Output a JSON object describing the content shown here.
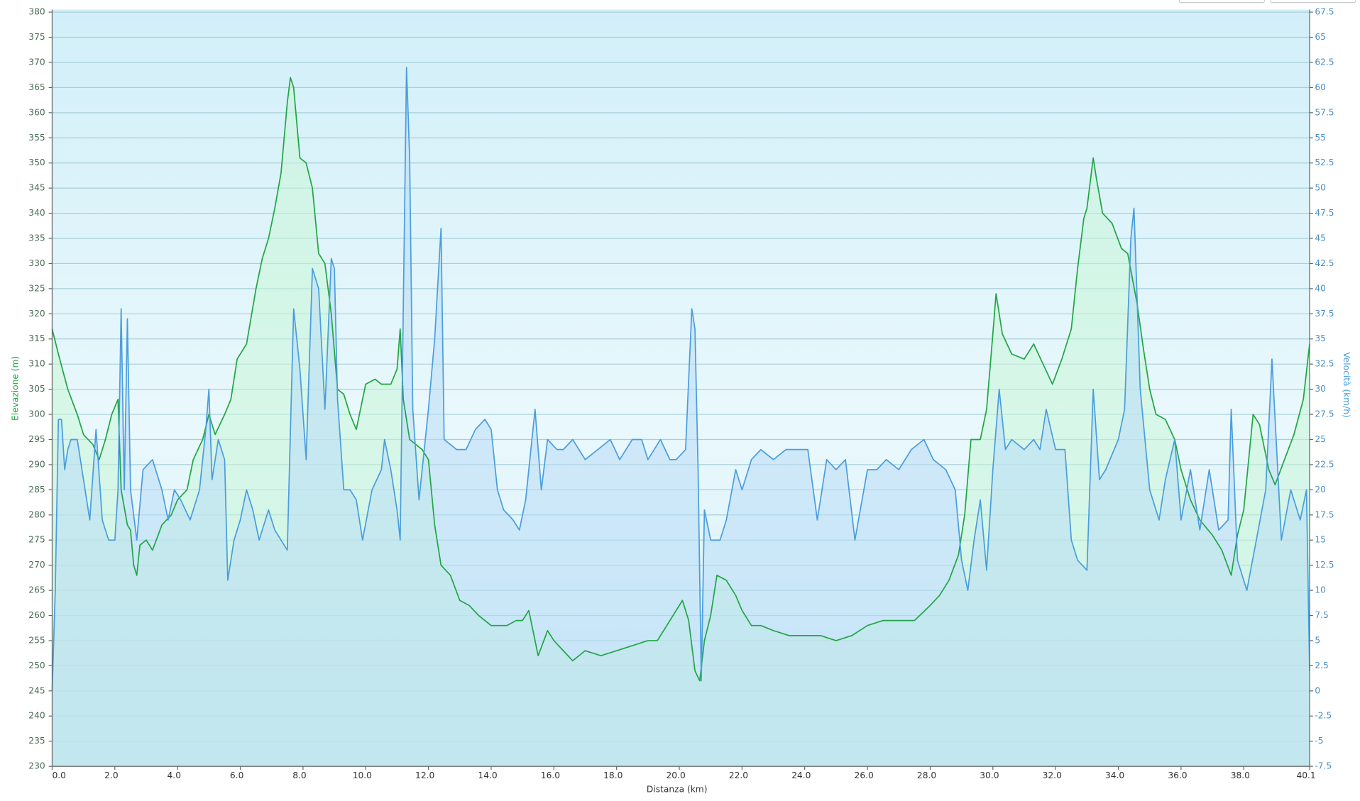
{
  "chart_data": {
    "type": "line",
    "xlabel": "Distanza  (km)",
    "ylabel": "Elevazione (m)",
    "y2label": "Velocità (km/h)",
    "xlim": [
      0,
      40.1
    ],
    "xticks": [
      {
        "value": 0,
        "label": "0.0"
      },
      {
        "value": 2,
        "label": "2.0"
      },
      {
        "value": 4,
        "label": "4.0"
      },
      {
        "value": 6,
        "label": "6.0"
      },
      {
        "value": 8,
        "label": "8.0"
      },
      {
        "value": 10,
        "label": "10.0"
      },
      {
        "value": 12,
        "label": "12.0"
      },
      {
        "value": 14,
        "label": "14.0"
      },
      {
        "value": 16,
        "label": "16.0"
      },
      {
        "value": 18,
        "label": "18.0"
      },
      {
        "value": 20,
        "label": "20.0"
      },
      {
        "value": 22,
        "label": "22.0"
      },
      {
        "value": 24,
        "label": "24.0"
      },
      {
        "value": 26,
        "label": "26.0"
      },
      {
        "value": 28,
        "label": "28.0"
      },
      {
        "value": 30,
        "label": "30.0"
      },
      {
        "value": 32,
        "label": "32.0"
      },
      {
        "value": 34,
        "label": "34.0"
      },
      {
        "value": 36,
        "label": "36.0"
      },
      {
        "value": 38,
        "label": "38.0"
      },
      {
        "value": 40.1,
        "label": "40.1"
      }
    ],
    "ylim": [
      230,
      380
    ],
    "yticks": [
      230,
      235,
      240,
      245,
      250,
      255,
      260,
      265,
      270,
      275,
      280,
      285,
      290,
      295,
      300,
      305,
      310,
      315,
      320,
      325,
      330,
      335,
      340,
      345,
      350,
      355,
      360,
      365,
      370,
      375,
      380
    ],
    "y2lim": [
      -7.5,
      67.5
    ],
    "y2ticks": [
      -7.5,
      -5,
      -2.5,
      0,
      2.5,
      5,
      7.5,
      10,
      12.5,
      15,
      17.5,
      20,
      22.5,
      25,
      27.5,
      30,
      32.5,
      35,
      37.5,
      40,
      42.5,
      45,
      47.5,
      50,
      52.5,
      55,
      57.5,
      60,
      62.5,
      65,
      67.5
    ],
    "grid": true,
    "series": [
      {
        "name": "Elevazione",
        "color": "#22a544",
        "fill": "rgba(200,245,215,0.55)",
        "axis": "y",
        "x": [
          0,
          0.2,
          0.5,
          0.8,
          1.0,
          1.3,
          1.5,
          1.7,
          1.9,
          2.1,
          2.2,
          2.4,
          2.5,
          2.6,
          2.7,
          2.8,
          3.0,
          3.2,
          3.5,
          3.8,
          4.0,
          4.3,
          4.5,
          4.8,
          5.0,
          5.2,
          5.5,
          5.7,
          5.9,
          6.2,
          6.5,
          6.7,
          6.9,
          7.1,
          7.3,
          7.5,
          7.6,
          7.7,
          7.9,
          8.1,
          8.3,
          8.5,
          8.7,
          8.9,
          9.1,
          9.3,
          9.5,
          9.7,
          10.0,
          10.3,
          10.5,
          10.8,
          11.0,
          11.1,
          11.2,
          11.4,
          11.6,
          11.8,
          12.0,
          12.2,
          12.4,
          12.7,
          13.0,
          13.3,
          13.6,
          14.0,
          14.5,
          14.8,
          15.0,
          15.2,
          15.5,
          15.8,
          16.0,
          16.3,
          16.6,
          17.0,
          17.5,
          18.0,
          18.5,
          19.0,
          19.3,
          19.6,
          19.9,
          20.1,
          20.3,
          20.5,
          20.65,
          20.8,
          21.0,
          21.2,
          21.5,
          21.8,
          22.0,
          22.3,
          22.6,
          23.0,
          23.5,
          24.0,
          24.5,
          25.0,
          25.5,
          26.0,
          26.5,
          27.0,
          27.5,
          28.0,
          28.3,
          28.6,
          28.9,
          29.1,
          29.3,
          29.6,
          29.8,
          30.0,
          30.1,
          30.3,
          30.6,
          31.0,
          31.3,
          31.6,
          31.9,
          32.2,
          32.5,
          32.7,
          32.9,
          33.0,
          33.2,
          33.3,
          33.5,
          33.8,
          34.1,
          34.3,
          34.6,
          34.8,
          35.0,
          35.2,
          35.5,
          35.8,
          36.0,
          36.3,
          36.6,
          37.0,
          37.3,
          37.6,
          37.8,
          38.0,
          38.3,
          38.5,
          38.8,
          39.0,
          39.3,
          39.6,
          39.9,
          40.1
        ],
        "values": [
          317,
          312,
          305,
          300,
          296,
          294,
          291,
          295,
          300,
          303,
          285,
          278,
          277,
          270,
          268,
          274,
          275,
          273,
          278,
          280,
          283,
          285,
          291,
          295,
          300,
          296,
          300,
          303,
          311,
          314,
          325,
          331,
          335,
          341,
          348,
          362,
          367,
          365,
          351,
          350,
          345,
          332,
          330,
          320,
          305,
          304,
          300,
          297,
          306,
          307,
          306,
          306,
          309,
          317,
          303,
          295,
          294,
          293,
          291,
          278,
          270,
          268,
          263,
          262,
          260,
          258,
          258,
          259,
          259,
          261,
          252,
          257,
          255,
          253,
          251,
          253,
          252,
          253,
          254,
          255,
          255,
          258,
          261,
          263,
          259,
          249,
          247,
          255,
          260,
          268,
          267,
          264,
          261,
          258,
          258,
          257,
          256,
          256,
          256,
          255,
          256,
          258,
          259,
          259,
          259,
          262,
          264,
          267,
          272,
          280,
          295,
          295,
          301,
          316,
          324,
          316,
          312,
          311,
          314,
          310,
          306,
          311,
          317,
          329,
          339,
          341,
          351,
          347,
          340,
          338,
          333,
          332,
          322,
          313,
          305,
          300,
          299,
          295,
          289,
          283,
          279,
          276,
          273,
          268,
          276,
          281,
          300,
          298,
          289,
          286,
          291,
          296,
          303,
          314
        ]
      },
      {
        "name": "Velocità",
        "color": "#4b9ddd",
        "fill": "rgba(185,220,245,0.55)",
        "axis": "y2",
        "x": [
          0,
          0.1,
          0.2,
          0.3,
          0.4,
          0.5,
          0.6,
          0.8,
          1.0,
          1.2,
          1.4,
          1.6,
          1.8,
          2.0,
          2.1,
          2.2,
          2.3,
          2.4,
          2.5,
          2.7,
          2.9,
          3.2,
          3.5,
          3.7,
          3.9,
          4.1,
          4.4,
          4.7,
          4.9,
          5.0,
          5.1,
          5.3,
          5.5,
          5.6,
          5.8,
          6.0,
          6.2,
          6.4,
          6.6,
          6.9,
          7.1,
          7.3,
          7.5,
          7.7,
          7.9,
          8.1,
          8.3,
          8.5,
          8.7,
          8.9,
          9.0,
          9.1,
          9.3,
          9.5,
          9.7,
          9.9,
          10.2,
          10.5,
          10.6,
          10.8,
          11.0,
          11.1,
          11.3,
          11.4,
          11.5,
          11.7,
          12.0,
          12.2,
          12.4,
          12.5,
          12.9,
          13.2,
          13.5,
          13.8,
          14.0,
          14.2,
          14.4,
          14.7,
          14.9,
          15.1,
          15.4,
          15.6,
          15.8,
          16.1,
          16.3,
          16.6,
          17.0,
          17.4,
          17.8,
          18.1,
          18.5,
          18.8,
          19.0,
          19.4,
          19.7,
          19.9,
          20.2,
          20.4,
          20.5,
          20.6,
          20.7,
          20.8,
          21.0,
          21.3,
          21.5,
          21.8,
          22.0,
          22.3,
          22.6,
          23.0,
          23.4,
          23.8,
          24.1,
          24.4,
          24.7,
          25.0,
          25.3,
          25.6,
          26.0,
          26.3,
          26.6,
          27.0,
          27.4,
          27.8,
          28.1,
          28.5,
          28.8,
          29.0,
          29.2,
          29.4,
          29.6,
          29.8,
          30.0,
          30.2,
          30.4,
          30.6,
          31.0,
          31.3,
          31.5,
          31.7,
          32.0,
          32.3,
          32.5,
          32.7,
          33.0,
          33.2,
          33.4,
          33.6,
          34.0,
          34.2,
          34.4,
          34.5,
          34.7,
          35.0,
          35.3,
          35.5,
          35.8,
          36.0,
          36.3,
          36.6,
          36.9,
          37.2,
          37.5,
          37.6,
          37.8,
          38.1,
          38.4,
          38.7,
          38.9,
          39.2,
          39.5,
          39.8,
          40.0,
          40.1
        ],
        "values": [
          0,
          10,
          27,
          27,
          22,
          24,
          25,
          25,
          21,
          17,
          26,
          17,
          15,
          15,
          20,
          38,
          20,
          37,
          20,
          15,
          22,
          23,
          20,
          17,
          20,
          19,
          17,
          20,
          26,
          30,
          21,
          25,
          23,
          11,
          15,
          17,
          20,
          18,
          15,
          18,
          16,
          15,
          14,
          38,
          32,
          23,
          42,
          40,
          28,
          43,
          42,
          29,
          20,
          20,
          19,
          15,
          20,
          22,
          25,
          22,
          18,
          15,
          62,
          53,
          28,
          19,
          28,
          35,
          46,
          25,
          24,
          24,
          26,
          27,
          26,
          20,
          18,
          17,
          16,
          19,
          28,
          20,
          25,
          24,
          24,
          25,
          23,
          24,
          25,
          23,
          25,
          25,
          23,
          25,
          23,
          23,
          24,
          38,
          36,
          22,
          1,
          18,
          15,
          15,
          17,
          22,
          20,
          23,
          24,
          23,
          24,
          24,
          24,
          17,
          23,
          22,
          23,
          15,
          22,
          22,
          23,
          22,
          24,
          25,
          23,
          22,
          20,
          13,
          10,
          15,
          19,
          12,
          22,
          30,
          24,
          25,
          24,
          25,
          24,
          28,
          24,
          24,
          15,
          13,
          12,
          30,
          21,
          22,
          25,
          28,
          45,
          48,
          30,
          20,
          17,
          21,
          25,
          17,
          22,
          16,
          22,
          16,
          17,
          28,
          13,
          10,
          15,
          20,
          33,
          15,
          20,
          17,
          20,
          2
        ]
      }
    ]
  }
}
